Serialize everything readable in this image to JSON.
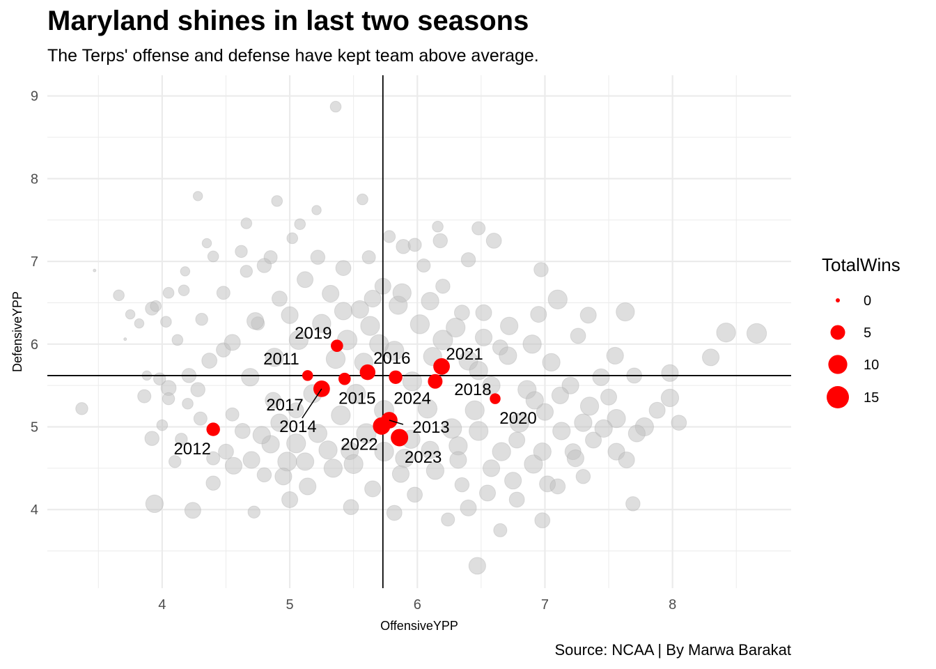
{
  "chart_data": {
    "type": "scatter",
    "title": "Maryland shines in last two seasons",
    "subtitle": "The Terps' offense and defense have kept team above average.",
    "caption": "Source: NCAA | By Marwa Barakat",
    "xlabel": "OffensiveYPP",
    "ylabel": "DefensiveYPP",
    "xlim": [
      3.1,
      8.93
    ],
    "ylim": [
      3.05,
      9.25
    ],
    "x_ticks": [
      4,
      5,
      6,
      7,
      8
    ],
    "y_ticks": [
      4,
      5,
      6,
      7,
      8,
      9
    ],
    "grid": true,
    "reference_lines": {
      "vline_x": 5.73,
      "hline_y": 5.62
    },
    "size_variable": "TotalWins",
    "legend": {
      "title": "TotalWins",
      "placement": "right",
      "entries": [
        {
          "label": "0",
          "wins": 0
        },
        {
          "label": "5",
          "wins": 5
        },
        {
          "label": "10",
          "wins": 10
        },
        {
          "label": "15",
          "wins": 15
        }
      ]
    },
    "colors": {
      "highlight": "#ff0000",
      "background_points": "#bebebe",
      "grid": "#ebebeb",
      "reference": "#000000"
    },
    "series": [
      {
        "name": "Maryland",
        "points": [
          {
            "label": "2011",
            "x": 5.14,
            "y": 5.62,
            "wins": 2
          },
          {
            "label": "2012",
            "x": 4.4,
            "y": 4.97,
            "wins": 4
          },
          {
            "label": "2013",
            "x": 5.78,
            "y": 5.08,
            "wins": 7
          },
          {
            "label": "2014",
            "x": 5.25,
            "y": 5.46,
            "wins": 7
          },
          {
            "label": "2015",
            "x": 5.43,
            "y": 5.58,
            "wins": 3
          },
          {
            "label": "2016",
            "x": 5.61,
            "y": 5.66,
            "wins": 6
          },
          {
            "label": "2017",
            "x": 5.26,
            "y": 5.45,
            "wins": 4
          },
          {
            "label": "2018",
            "x": 6.14,
            "y": 5.55,
            "wins": 5
          },
          {
            "label": "2019",
            "x": 5.37,
            "y": 5.98,
            "wins": 3
          },
          {
            "label": "2020",
            "x": 6.61,
            "y": 5.34,
            "wins": 2
          },
          {
            "label": "2021",
            "x": 6.19,
            "y": 5.73,
            "wins": 7
          },
          {
            "label": "2022",
            "x": 5.72,
            "y": 5.01,
            "wins": 8
          },
          {
            "label": "2023",
            "x": 5.86,
            "y": 4.87,
            "wins": 8
          },
          {
            "label": "2024",
            "x": 5.83,
            "y": 5.6,
            "wins": 4
          }
        ]
      }
    ],
    "background_points": [
      [
        5.36,
        8.87,
        3
      ],
      [
        3.47,
        6.89,
        0
      ],
      [
        4.28,
        7.79,
        2
      ],
      [
        3.37,
        5.22,
        4
      ],
      [
        3.92,
        4.86,
        6
      ],
      [
        3.94,
        4.07,
        10
      ],
      [
        4.24,
        3.99,
        8
      ],
      [
        4.4,
        4.32,
        6
      ],
      [
        4.56,
        4.53,
        9
      ],
      [
        4.8,
        4.42,
        6
      ],
      [
        6.47,
        3.32,
        9
      ],
      [
        6.65,
        3.75,
        5
      ],
      [
        6.65,
        5.96,
        7
      ],
      [
        6.97,
        6.9,
        6
      ],
      [
        7.1,
        6.54,
        12
      ],
      [
        7.34,
        6.35,
        8
      ],
      [
        7.63,
        6.39,
        11
      ],
      [
        7.55,
        5.86,
        9
      ],
      [
        7.56,
        5.1,
        11
      ],
      [
        7.78,
        5.0,
        11
      ],
      [
        7.98,
        5.65,
        9
      ],
      [
        7.98,
        5.35,
        10
      ],
      [
        8.05,
        5.05,
        7
      ],
      [
        8.3,
        5.84,
        9
      ],
      [
        8.42,
        6.14,
        12
      ],
      [
        8.66,
        6.13,
        13
      ],
      [
        7.69,
        4.07,
        6
      ],
      [
        7.38,
        4.84,
        8
      ],
      [
        7.56,
        4.7,
        9
      ],
      [
        6.98,
        3.87,
        7
      ],
      [
        7.02,
        4.31,
        8
      ],
      [
        5.57,
        7.75,
        3
      ],
      [
        4.9,
        7.73,
        3
      ],
      [
        4.4,
        7.06,
        3
      ],
      [
        4.62,
        7.12,
        4
      ],
      [
        4.17,
        6.65,
        3
      ],
      [
        4.05,
        6.62,
        3
      ],
      [
        3.92,
        6.43,
        5
      ],
      [
        3.66,
        6.59,
        3
      ],
      [
        3.71,
        6.06,
        0
      ],
      [
        4.48,
        5.93,
        6
      ],
      [
        4.75,
        6.25,
        5
      ],
      [
        4.28,
        5.45,
        6
      ],
      [
        4.05,
        5.47,
        7
      ],
      [
        3.86,
        5.37,
        5
      ],
      [
        4.05,
        5.34,
        4
      ],
      [
        4.55,
        5.15,
        5
      ],
      [
        4.87,
        5.32,
        8
      ],
      [
        5.05,
        5.2,
        7
      ],
      [
        4.63,
        4.95,
        7
      ],
      [
        4.85,
        4.79,
        10
      ],
      [
        4.98,
        4.58,
        12
      ],
      [
        5.14,
        4.28,
        9
      ],
      [
        5.34,
        4.5,
        11
      ],
      [
        5.47,
        4.71,
        10
      ],
      [
        5.65,
        4.25,
        8
      ],
      [
        5.87,
        4.43,
        9
      ],
      [
        5.98,
        4.18,
        7
      ],
      [
        6.14,
        4.47,
        10
      ],
      [
        6.32,
        4.77,
        11
      ],
      [
        6.35,
        4.3,
        6
      ],
      [
        6.58,
        4.5,
        9
      ],
      [
        6.78,
        4.84,
        8
      ],
      [
        6.91,
        4.55,
        11
      ],
      [
        7.13,
        4.95,
        10
      ],
      [
        7.22,
        4.7,
        8
      ],
      [
        7.0,
        5.18,
        9
      ],
      [
        6.86,
        5.45,
        11
      ],
      [
        6.71,
        5.86,
        10
      ],
      [
        6.52,
        6.08,
        9
      ],
      [
        6.35,
        6.38,
        7
      ],
      [
        6.2,
        6.7,
        6
      ],
      [
        6.05,
        6.95,
        5
      ],
      [
        5.89,
        7.18,
        6
      ],
      [
        5.73,
        6.7,
        8
      ],
      [
        5.55,
        6.42,
        10
      ],
      [
        5.32,
        6.61,
        9
      ],
      [
        5.12,
        6.78,
        8
      ],
      [
        4.92,
        6.55,
        7
      ],
      [
        4.73,
        6.28,
        9
      ],
      [
        4.55,
        6.02,
        8
      ],
      [
        4.37,
        5.8,
        7
      ],
      [
        4.21,
        5.62,
        6
      ],
      [
        4.69,
        5.6,
        10
      ],
      [
        4.88,
        5.84,
        11
      ],
      [
        5.07,
        6.05,
        12
      ],
      [
        5.25,
        6.25,
        11
      ],
      [
        5.45,
        6.05,
        13
      ],
      [
        5.63,
        6.22,
        12
      ],
      [
        5.85,
        6.47,
        11
      ],
      [
        6.02,
        6.24,
        12
      ],
      [
        6.2,
        6.05,
        13
      ],
      [
        6.4,
        5.8,
        12
      ],
      [
        6.58,
        5.5,
        10
      ],
      [
        6.45,
        5.2,
        12
      ],
      [
        6.27,
        4.98,
        13
      ],
      [
        6.08,
        5.22,
        12
      ],
      [
        5.95,
        4.85,
        11
      ],
      [
        5.6,
        4.92,
        13
      ],
      [
        5.4,
        5.14,
        12
      ],
      [
        5.22,
        4.92,
        11
      ],
      [
        5.05,
        4.8,
        12
      ],
      [
        4.92,
        5.05,
        10
      ],
      [
        5.18,
        5.4,
        11
      ],
      [
        5.36,
        5.82,
        12
      ],
      [
        5.52,
        5.4,
        12
      ],
      [
        5.74,
        5.2,
        13
      ],
      [
        5.96,
        5.55,
        12
      ],
      [
        6.12,
        5.85,
        11
      ],
      [
        5.82,
        5.92,
        12
      ],
      [
        5.58,
        5.78,
        11
      ],
      [
        5.42,
        6.4,
        10
      ],
      [
        5.65,
        6.55,
        9
      ],
      [
        5.88,
        6.62,
        11
      ],
      [
        6.1,
        6.52,
        10
      ],
      [
        6.3,
        6.2,
        12
      ],
      [
        6.52,
        6.38,
        8
      ],
      [
        6.72,
        6.22,
        10
      ],
      [
        6.9,
        6.0,
        11
      ],
      [
        7.05,
        5.78,
        10
      ],
      [
        7.2,
        5.5,
        9
      ],
      [
        7.35,
        5.25,
        11
      ],
      [
        7.44,
        5.6,
        9
      ],
      [
        7.26,
        6.1,
        7
      ],
      [
        6.95,
        6.36,
        8
      ],
      [
        6.8,
        5.05,
        12
      ],
      [
        6.66,
        4.7,
        11
      ],
      [
        6.48,
        4.95,
        12
      ],
      [
        4.5,
        4.7,
        7
      ],
      [
        4.7,
        4.6,
        9
      ],
      [
        4.3,
        5.1,
        5
      ],
      [
        4.15,
        4.85,
        4
      ],
      [
        3.98,
        5.58,
        4
      ],
      [
        4.12,
        6.05,
        3
      ],
      [
        4.31,
        6.3,
        4
      ],
      [
        4.48,
        6.62,
        5
      ],
      [
        4.66,
        6.88,
        4
      ],
      [
        4.85,
        7.05,
        5
      ],
      [
        5.02,
        7.28,
        3
      ],
      [
        5.22,
        7.05,
        6
      ],
      [
        5.42,
        6.92,
        7
      ],
      [
        5.62,
        7.05,
        5
      ],
      [
        5.78,
        7.3,
        4
      ],
      [
        5.98,
        7.2,
        5
      ],
      [
        6.18,
        7.25,
        6
      ],
      [
        6.4,
        7.02,
        6
      ],
      [
        6.6,
        7.25,
        7
      ],
      [
        6.48,
        7.4,
        5
      ],
      [
        6.16,
        7.42,
        3
      ],
      [
        5.21,
        7.62,
        2
      ],
      [
        5.08,
        7.45,
        3
      ],
      [
        4.66,
        7.46,
        3
      ],
      [
        4.35,
        7.22,
        2
      ],
      [
        4.03,
        6.27,
        3
      ],
      [
        3.75,
        6.36,
        2
      ],
      [
        4.72,
        3.97,
        4
      ],
      [
        5.48,
        4.03,
        7
      ],
      [
        6.24,
        3.88,
        5
      ],
      [
        6.78,
        4.12,
        7
      ],
      [
        7.3,
        4.4,
        6
      ],
      [
        7.64,
        4.6,
        8
      ],
      [
        7.1,
        4.28,
        7
      ],
      [
        6.4,
        4.02,
        8
      ],
      [
        5.82,
        3.96,
        7
      ],
      [
        5.0,
        4.12,
        8
      ],
      [
        4.4,
        4.62,
        5
      ],
      [
        4.1,
        4.58,
        4
      ],
      [
        4.2,
        5.28,
        3
      ],
      [
        4.0,
        5.02,
        3
      ],
      [
        3.88,
        5.62,
        2
      ],
      [
        3.82,
        6.25,
        2
      ],
      [
        3.95,
        6.46,
        3
      ],
      [
        4.18,
        6.88,
        2
      ],
      [
        4.8,
        6.95,
        6
      ],
      [
        5.0,
        6.35,
        9
      ],
      [
        5.7,
        6.0,
        12
      ],
      [
        6.48,
        5.68,
        11
      ],
      [
        6.92,
        5.32,
        10
      ],
      [
        7.12,
        5.38,
        9
      ],
      [
        7.3,
        5.05,
        10
      ],
      [
        7.5,
        5.36,
        8
      ],
      [
        7.7,
        5.62,
        7
      ],
      [
        7.88,
        5.2,
        8
      ],
      [
        7.72,
        4.92,
        9
      ],
      [
        7.46,
        4.98,
        10
      ],
      [
        7.24,
        4.62,
        9
      ],
      [
        6.98,
        4.7,
        10
      ],
      [
        6.75,
        4.35,
        9
      ],
      [
        6.55,
        4.2,
        8
      ],
      [
        6.32,
        4.6,
        9
      ],
      [
        6.1,
        4.72,
        10
      ],
      [
        5.9,
        4.62,
        11
      ],
      [
        5.74,
        4.7,
        12
      ],
      [
        5.5,
        4.55,
        12
      ],
      [
        5.3,
        4.72,
        11
      ],
      [
        5.12,
        4.58,
        10
      ],
      [
        4.95,
        4.4,
        9
      ],
      [
        4.78,
        4.9,
        10
      ]
    ]
  }
}
